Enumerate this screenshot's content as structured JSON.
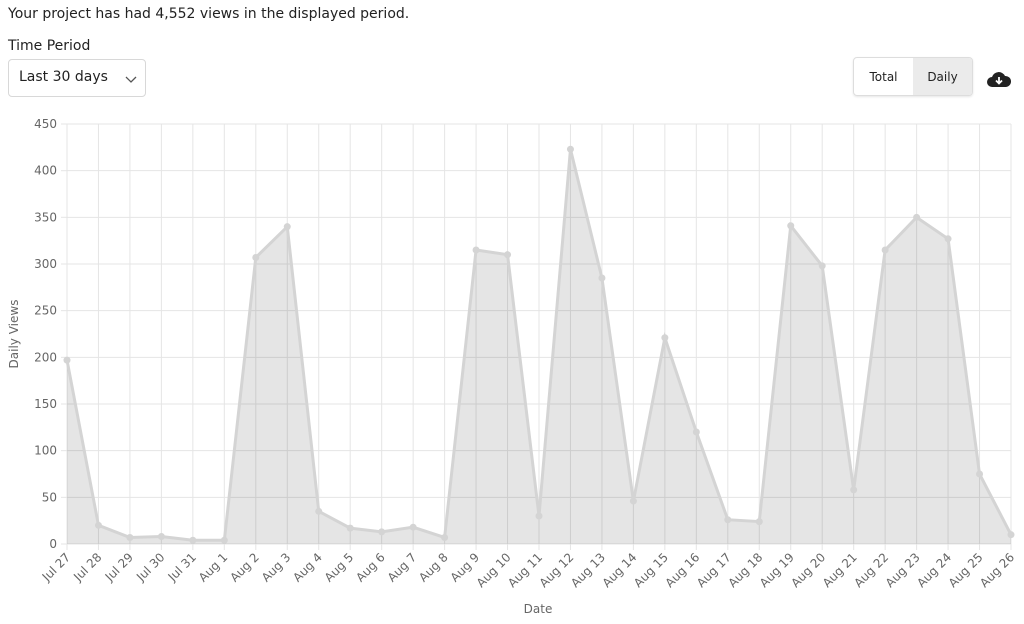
{
  "header": {
    "message": "Your project has had 4,552 views in the displayed period."
  },
  "controls": {
    "time_period_label": "Time Period",
    "time_period_value": "Last 30 days",
    "toggle": [
      "Total",
      "Daily"
    ],
    "toggle_active": 1
  },
  "chart_data": {
    "type": "area",
    "xlabel": "Date",
    "ylabel": "Daily Views",
    "categories": [
      "Jul 27",
      "Jul 28",
      "Jul 29",
      "Jul 30",
      "Jul 31",
      "Aug 1",
      "Aug 2",
      "Aug 3",
      "Aug 4",
      "Aug 5",
      "Aug 6",
      "Aug 7",
      "Aug 8",
      "Aug 9",
      "Aug 10",
      "Aug 11",
      "Aug 12",
      "Aug 13",
      "Aug 14",
      "Aug 15",
      "Aug 16",
      "Aug 17",
      "Aug 18",
      "Aug 19",
      "Aug 20",
      "Aug 21",
      "Aug 22",
      "Aug 23",
      "Aug 24",
      "Aug 25",
      "Aug 26"
    ],
    "values": [
      197,
      20,
      7,
      8,
      4,
      4,
      307,
      340,
      35,
      17,
      13,
      18,
      7,
      315,
      310,
      30,
      423,
      285,
      46,
      221,
      120,
      26,
      24,
      341,
      298,
      58,
      315,
      350,
      327,
      75,
      10
    ],
    "color": "#d4d4d4",
    "ylim": [
      0,
      450
    ],
    "yticks": [
      0,
      50,
      100,
      150,
      200,
      250,
      300,
      350,
      400,
      450
    ],
    "grid": true
  }
}
